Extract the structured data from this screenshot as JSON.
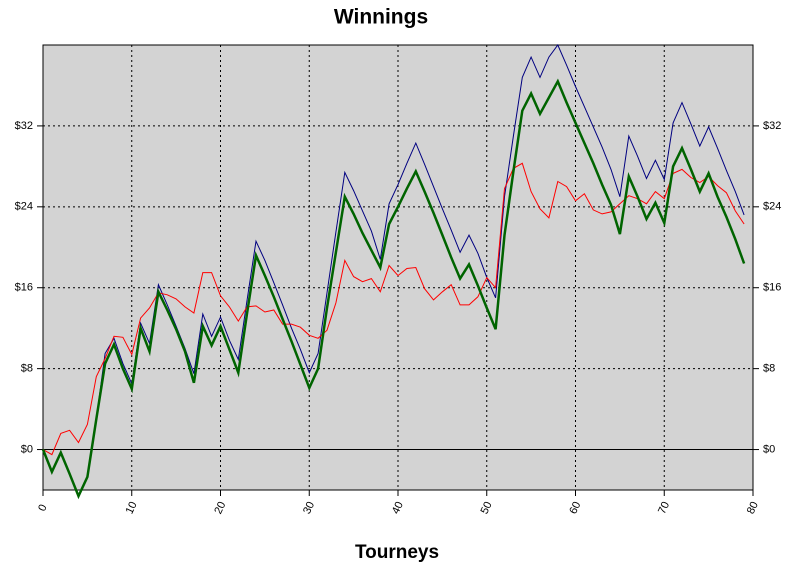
{
  "chart_data": {
    "type": "line",
    "title": "Winnings",
    "x_label": "Tourneys",
    "x": [
      0,
      1,
      2,
      3,
      4,
      5,
      6,
      7,
      8,
      9,
      10,
      11,
      12,
      13,
      14,
      15,
      16,
      17,
      18,
      19,
      20,
      21,
      22,
      23,
      24,
      25,
      26,
      27,
      28,
      29,
      30,
      31,
      32,
      33,
      34,
      35,
      36,
      37,
      38,
      39,
      40,
      41,
      42,
      43,
      44,
      45,
      46,
      47,
      48,
      49,
      50,
      51,
      52,
      53,
      54,
      55,
      56,
      57,
      58,
      59,
      60,
      61,
      62,
      63,
      64,
      65,
      66,
      67,
      68,
      69,
      70,
      71,
      72,
      73,
      74,
      75,
      76,
      77,
      78,
      79
    ],
    "series": [
      {
        "color": "#000080",
        "width": 1,
        "values": [
          0,
          -2.2,
          -0.3,
          -2.4,
          -4.6,
          -2.7,
          3,
          9.5,
          11,
          8.5,
          6.5,
          12.5,
          10.5,
          16.3,
          14.3,
          12.2,
          10,
          7.5,
          13.4,
          11.2,
          13.1,
          10.8,
          8.9,
          14.8,
          20.6,
          18.7,
          16.5,
          14.3,
          12,
          9.9,
          7.6,
          9.5,
          15.5,
          21.5,
          27.4,
          25.6,
          23.6,
          21.6,
          18.8,
          24.3,
          26.2,
          28.3,
          30.3,
          28.2,
          26,
          23.8,
          21.7,
          19.5,
          21.2,
          19.4,
          17,
          15,
          25,
          31,
          36.8,
          38.8,
          36.8,
          38.8,
          40,
          38,
          35.9,
          33.9,
          31.9,
          29.9,
          27.7,
          25,
          31,
          29,
          26.8,
          28.6,
          26.7,
          32.3,
          34.3,
          32.2,
          30,
          31.9,
          29.8,
          27.6,
          25.5,
          23.2
        ]
      },
      {
        "color": "#ff0000",
        "width": 1,
        "values": [
          0,
          -0.5,
          1.6,
          1.9,
          0.7,
          2.5,
          7.2,
          9,
          11.2,
          11.1,
          9.4,
          13,
          14,
          15.5,
          15.3,
          14.9,
          14.1,
          13.5,
          17.5,
          17.5,
          15.2,
          14.1,
          12.7,
          14.1,
          14.2,
          13.6,
          13.8,
          12.4,
          12.4,
          12.1,
          11.3,
          11,
          11.8,
          14.5,
          18.7,
          17.1,
          16.6,
          16.9,
          15.6,
          18.2,
          17.2,
          17.9,
          18,
          15.9,
          14.8,
          15.6,
          16.3,
          14.3,
          14.3,
          15.1,
          17,
          16,
          25.8,
          27.8,
          28.3,
          25.5,
          23.8,
          22.9,
          26.5,
          26,
          24.6,
          25.3,
          23.7,
          23.3,
          23.5,
          24.3,
          25.1,
          24.8,
          24.3,
          25.5,
          24.8,
          27.3,
          27.7,
          26.9,
          26.4,
          27,
          26.1,
          25.4,
          23.6,
          22.3
        ]
      },
      {
        "color": "#006400",
        "width": 2.5,
        "values": [
          0,
          -2.2,
          -0.3,
          -2.4,
          -4.6,
          -2.7,
          3,
          8.5,
          10.4,
          8,
          6,
          12,
          9.7,
          15.6,
          13.8,
          11.9,
          9.7,
          6.6,
          12.2,
          10.3,
          12.2,
          9.9,
          7.6,
          13.5,
          19.2,
          17.2,
          15.1,
          12.9,
          10.7,
          8.4,
          6.1,
          8,
          14,
          19.5,
          25,
          23.3,
          21.4,
          19.7,
          18,
          22.3,
          24,
          25.8,
          27.5,
          25.5,
          23.4,
          21.2,
          19,
          16.9,
          18.3,
          16.2,
          14,
          11.9,
          21.2,
          27.5,
          33.5,
          35.2,
          33.2,
          34.8,
          36.4,
          34.3,
          32.3,
          30.3,
          28.3,
          26.2,
          24.2,
          21.3,
          27,
          25,
          22.8,
          24.4,
          22.4,
          28,
          29.8,
          27.7,
          25.5,
          27.3,
          25,
          23,
          20.8,
          18.4
        ]
      }
    ],
    "xlim": [
      0,
      80
    ],
    "xticks": [
      0,
      10,
      20,
      30,
      40,
      50,
      60,
      70,
      80
    ],
    "ylim": [
      -4,
      40
    ],
    "yticks": [
      {
        "value": 0,
        "label": "$0"
      },
      {
        "value": 8,
        "label": "$8"
      },
      {
        "value": 16,
        "label": "$16"
      },
      {
        "value": 24,
        "label": "$24"
      },
      {
        "value": 32,
        "label": "$32"
      }
    ],
    "grid": true,
    "background": "#d3d3d3"
  }
}
